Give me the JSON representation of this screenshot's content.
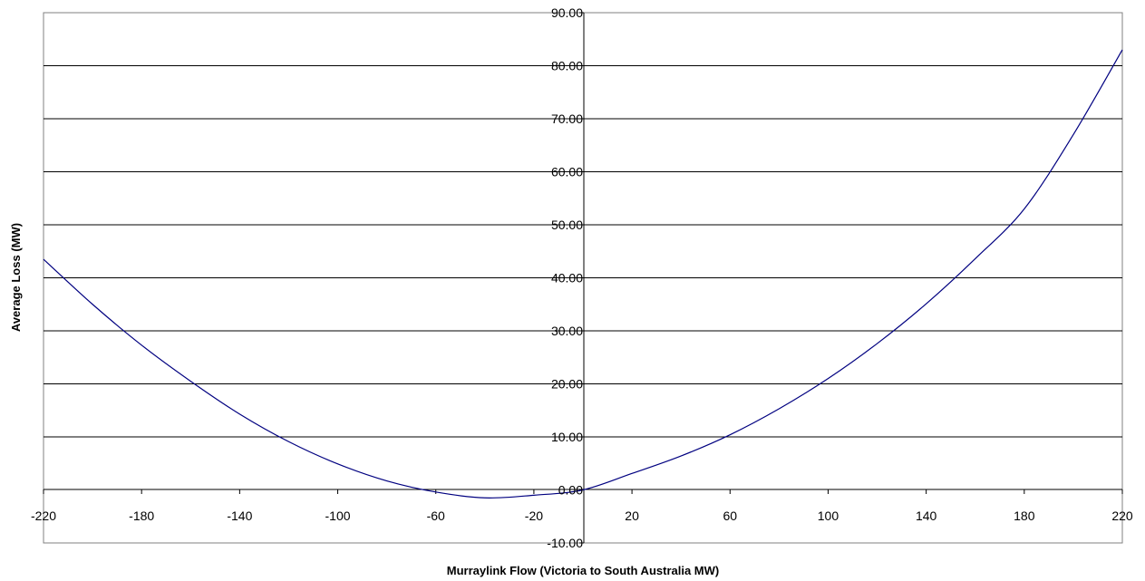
{
  "chart_data": {
    "type": "line",
    "title": "",
    "xlabel": "Murraylink Flow (Victoria to South Australia MW)",
    "ylabel": "Average Loss (MW)",
    "xlim": [
      -220,
      220
    ],
    "ylim": [
      -10,
      90
    ],
    "x_ticks": [
      -220,
      -180,
      -140,
      -100,
      -60,
      -20,
      20,
      60,
      100,
      140,
      180,
      220
    ],
    "x_tick_labels": [
      "-220",
      "-180",
      "-140",
      "-100",
      "-60",
      "-20",
      "20",
      "60",
      "100",
      "140",
      "180",
      "220"
    ],
    "y_ticks": [
      -10,
      0,
      10,
      20,
      30,
      40,
      50,
      60,
      70,
      80,
      90
    ],
    "y_tick_labels": [
      "-10.00",
      "0.00",
      "10.00",
      "20.00",
      "30.00",
      "40.00",
      "50.00",
      "60.00",
      "70.00",
      "80.00",
      "90.00"
    ],
    "grid": true,
    "legend": "none",
    "series": [
      {
        "color": "#000080",
        "x": [
          -220,
          -200,
          -180,
          -160,
          -140,
          -120,
          -100,
          -80,
          -60,
          -40,
          -20,
          0,
          20,
          40,
          60,
          80,
          100,
          120,
          140,
          160,
          180,
          200,
          220
        ],
        "y": [
          43.5,
          35.0,
          27.3,
          20.5,
          14.3,
          9.1,
          4.9,
          1.7,
          -0.4,
          -1.5,
          -1.0,
          0.0,
          3.1,
          6.4,
          10.4,
          15.3,
          21.0,
          27.6,
          35.1,
          43.6,
          53.0,
          67.0,
          83.0
        ]
      }
    ]
  }
}
